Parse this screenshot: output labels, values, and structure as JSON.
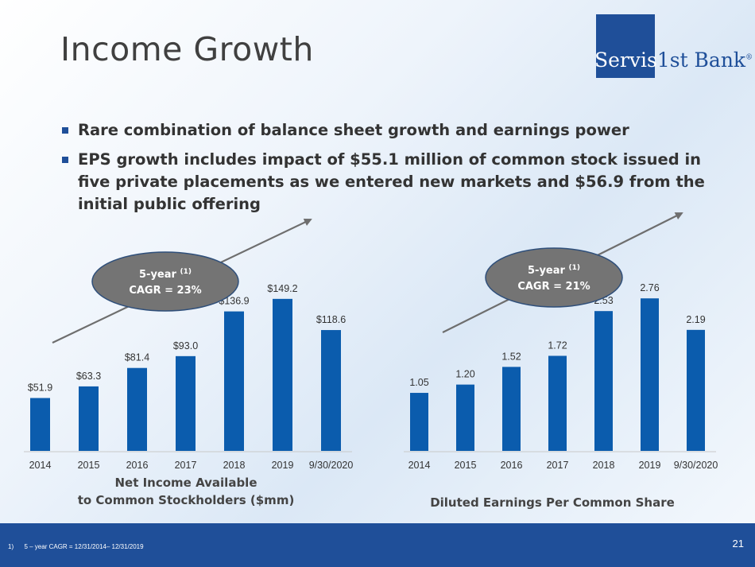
{
  "slide": {
    "title": "Income Growth",
    "logo": {
      "primary": "Servis",
      "secondary": "1st Bank",
      "mark": "®"
    },
    "bullets": [
      "Rare combination of balance sheet growth and earnings power",
      "EPS growth includes impact of $55.1 million of common stock issued in five private placements as we entered new markets and $56.9 from the initial public offering"
    ],
    "footnote": "1)      5 – year CAGR = 12/31/2014– 12/31/2019",
    "page_number": "21"
  },
  "colors": {
    "bar": "#0b5cad",
    "ellipse": "#747474",
    "arrow": "#6e6e6e",
    "footer": "#1f4f99"
  },
  "chart_data": [
    {
      "type": "bar",
      "categories": [
        "2014",
        "2015",
        "2016",
        "2017",
        "2018",
        "2019",
        "9/30/2020"
      ],
      "values": [
        51.9,
        63.3,
        81.4,
        93.0,
        136.9,
        149.2,
        118.6
      ],
      "value_labels": [
        "$51.9",
        "$63.3",
        "$81.4",
        "$93.0",
        "$136.9",
        "$149.2",
        "$118.6"
      ],
      "title": "Net Income Available to Common Stockholders ($mm)",
      "title_lines": [
        "Net Income Available",
        "to Common Stockholders ($mm)"
      ],
      "ylim": [
        0,
        160
      ],
      "grid": false,
      "annotation": {
        "line1": "5-year ",
        "sup": "(1)",
        "line2": "CAGR = 23%"
      }
    },
    {
      "type": "bar",
      "categories": [
        "2014",
        "2015",
        "2016",
        "2017",
        "2018",
        "2019",
        "9/30/2020"
      ],
      "values": [
        1.05,
        1.2,
        1.52,
        1.72,
        2.53,
        2.76,
        2.19
      ],
      "value_labels": [
        "1.05",
        "1.20",
        "1.52",
        "1.72",
        "2.53",
        "2.76",
        "2.19"
      ],
      "title": "Diluted Earnings Per Common Share",
      "title_lines": [
        "Diluted Earnings Per Common Share"
      ],
      "ylim": [
        0,
        2.95
      ],
      "grid": false,
      "annotation": {
        "line1": "5-year ",
        "sup": "(1)",
        "line2": "CAGR = 21%"
      }
    }
  ]
}
